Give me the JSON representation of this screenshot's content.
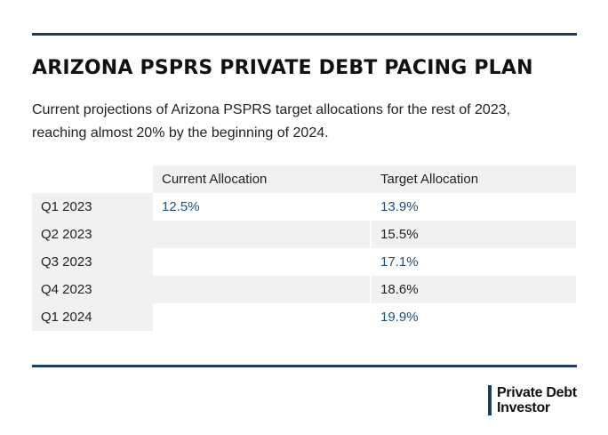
{
  "header": {
    "title": "ARIZONA PSPRS PRIVATE DEBT PACING PLAN",
    "subtitle": "Current projections of Arizona PSPRS target allocations for the rest of 2023, reaching almost 20% by the beginning of 2024."
  },
  "chart_data": {
    "type": "table",
    "columns": [
      "Current Allocation",
      "Target Allocation"
    ],
    "rows": [
      {
        "period": "Q1 2023",
        "current": "12.5%",
        "target": "13.9%"
      },
      {
        "period": "Q2 2023",
        "current": "",
        "target": "15.5%"
      },
      {
        "period": "Q3 2023",
        "current": "",
        "target": "17.1%"
      },
      {
        "period": "Q4 2023",
        "current": "",
        "target": "18.6%"
      },
      {
        "period": "Q1 2024",
        "current": "",
        "target": "19.9%"
      }
    ]
  },
  "branding": {
    "logo_line1": "Private Debt",
    "logo_line2": "Investor"
  },
  "colors": {
    "accent": "#1d3a5f",
    "value_text": "#1f4e79",
    "row_shade": "#f1f1f1"
  }
}
